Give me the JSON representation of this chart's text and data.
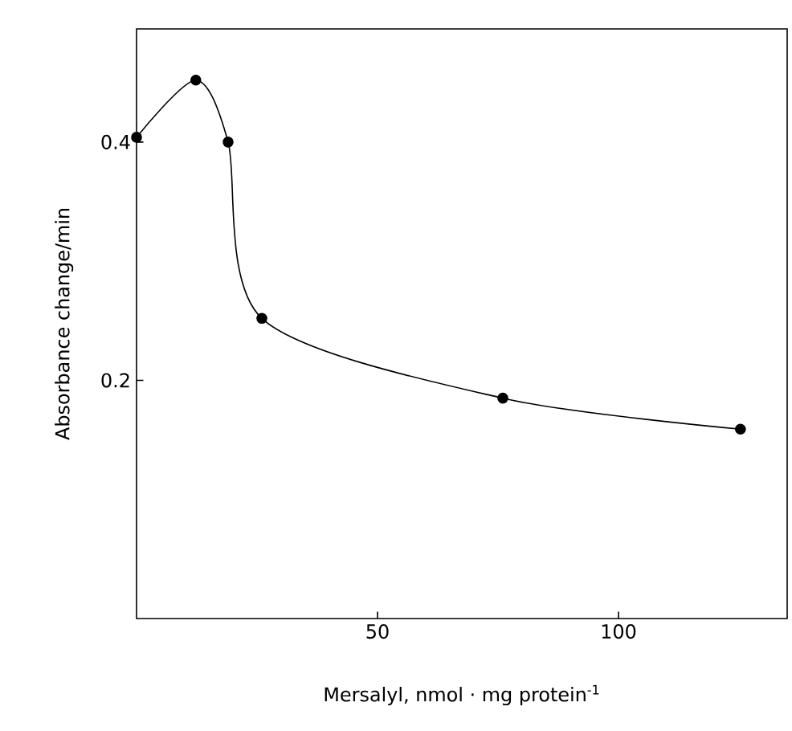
{
  "chart_data": {
    "type": "line",
    "xlabel": "Mersalyl, nmol · mg  protein$^{-1}$",
    "ylabel": "Absorbance  change/min",
    "x": [
      0,
      12.3,
      19,
      26,
      76,
      125.3
    ],
    "series": [
      {
        "color": "#000000",
        "values": [
          0.404,
          0.452,
          0.4,
          0.252,
          0.185,
          0.159
        ]
      }
    ],
    "xlim": [
      0,
      135
    ],
    "ylim": [
      0,
      0.495
    ],
    "xticks": [
      50,
      100
    ],
    "yticks": [
      0.2,
      0.4
    ],
    "grid": false,
    "marker": "circle",
    "line_style": "solid"
  }
}
